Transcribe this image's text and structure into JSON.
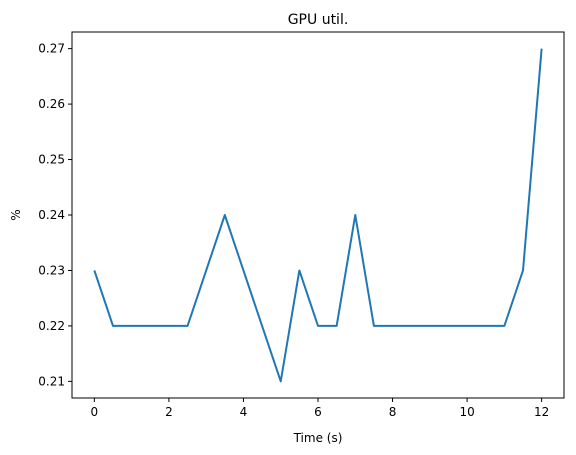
{
  "chart_data": {
    "type": "line",
    "title": "GPU util.",
    "xlabel": "Time (s)",
    "ylabel": "%",
    "xlim": [
      -0.6,
      12.6
    ],
    "ylim": [
      0.207,
      0.273
    ],
    "xticks": [
      0,
      2,
      4,
      6,
      8,
      10,
      12
    ],
    "xtick_labels": [
      "0",
      "2",
      "4",
      "6",
      "8",
      "10",
      "12"
    ],
    "yticks": [
      0.21,
      0.22,
      0.23,
      0.24,
      0.25,
      0.26,
      0.27
    ],
    "ytick_labels": [
      "0.21",
      "0.22",
      "0.23",
      "0.24",
      "0.25",
      "0.26",
      "0.27"
    ],
    "grid": false,
    "series": [
      {
        "color": "#1f77b4",
        "x": [
          0,
          0.5,
          1,
          1.5,
          2,
          2.5,
          3,
          3.5,
          4,
          4.5,
          5,
          5.5,
          6,
          6.5,
          7,
          7.5,
          8,
          8.5,
          9,
          9.5,
          10,
          10.5,
          11,
          11.5,
          12
        ],
        "y": [
          0.23,
          0.22,
          0.22,
          0.22,
          0.22,
          0.22,
          0.23,
          0.24,
          0.23,
          0.22,
          0.21,
          0.23,
          0.22,
          0.22,
          0.24,
          0.22,
          0.22,
          0.22,
          0.22,
          0.22,
          0.22,
          0.22,
          0.22,
          0.23,
          0.27
        ]
      }
    ]
  }
}
